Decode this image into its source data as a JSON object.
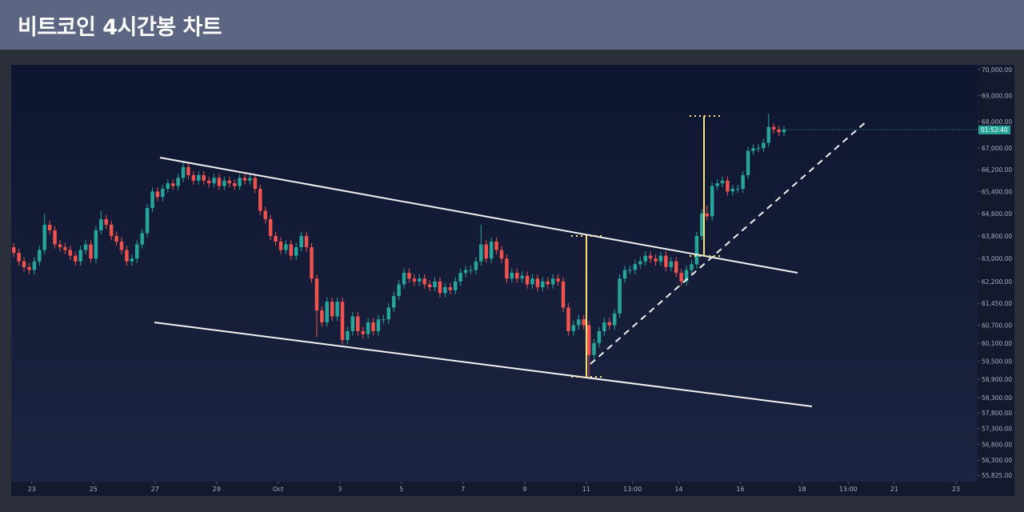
{
  "chart_data": {
    "type": "candlestick",
    "title": "비트코인 4시간봉 차트",
    "log_scale": true,
    "up_color": "#26a69a",
    "down_color": "#ef5350",
    "countdown": "01:52:40",
    "xlim": [
      -0.5,
      187.7
    ],
    "ylim": [
      55630,
      70190
    ],
    "yticks": [
      {
        "value": 70000,
        "label": "70,000.00"
      },
      {
        "value": 69000,
        "label": "69,000.00"
      },
      {
        "value": 68000,
        "label": "68,000.00"
      },
      {
        "value": 67000,
        "label": "67,000.00"
      },
      {
        "value": 66200,
        "label": "66,200.00"
      },
      {
        "value": 65400,
        "label": "65,400.00"
      },
      {
        "value": 64600,
        "label": "64,600.00"
      },
      {
        "value": 63800,
        "label": "63,800.00"
      },
      {
        "value": 63000,
        "label": "63,000.00"
      },
      {
        "value": 62200,
        "label": "62,200.00"
      },
      {
        "value": 61450,
        "label": "61,450.00"
      },
      {
        "value": 60700,
        "label": "60,700.00"
      },
      {
        "value": 60100,
        "label": "60,100.00"
      },
      {
        "value": 59500,
        "label": "59,500.00"
      },
      {
        "value": 58900,
        "label": "58,900.00"
      },
      {
        "value": 58300,
        "label": "58,300.00"
      },
      {
        "value": 57800,
        "label": "57,800.00"
      },
      {
        "value": 57300,
        "label": "57,300.00"
      },
      {
        "value": 56800,
        "label": "56,800.00"
      },
      {
        "value": 56300,
        "label": "56,300.00"
      },
      {
        "value": 55825,
        "label": "55,825.00"
      }
    ],
    "xticks": [
      {
        "value": 3.5,
        "label": "23"
      },
      {
        "value": 15.5,
        "label": "25"
      },
      {
        "value": 27.5,
        "label": "27"
      },
      {
        "value": 39.5,
        "label": "29"
      },
      {
        "value": 51.5,
        "label": "Oct"
      },
      {
        "value": 63.5,
        "label": "3"
      },
      {
        "value": 75.5,
        "label": "5"
      },
      {
        "value": 87.5,
        "label": "7"
      },
      {
        "value": 99.5,
        "label": "9"
      },
      {
        "value": 111.5,
        "label": "11"
      },
      {
        "value": 120.5,
        "label": "13:00"
      },
      {
        "value": 129.5,
        "label": "14"
      },
      {
        "value": 141.5,
        "label": "16"
      },
      {
        "value": 153.5,
        "label": "18"
      },
      {
        "value": 162.5,
        "label": "13:00"
      },
      {
        "value": 171.5,
        "label": "21"
      },
      {
        "value": 183.5,
        "label": "23"
      }
    ],
    "ohlc": [
      [
        63400,
        63550,
        63050,
        63200
      ],
      [
        63200,
        63350,
        62750,
        62900
      ],
      [
        62900,
        63050,
        62550,
        62700
      ],
      [
        62700,
        62850,
        62450,
        62600
      ],
      [
        62600,
        63050,
        62450,
        62900
      ],
      [
        62900,
        63450,
        62750,
        63300
      ],
      [
        63300,
        64600,
        63150,
        64200
      ],
      [
        64200,
        64350,
        63850,
        64000
      ],
      [
        64000,
        64150,
        63350,
        63500
      ],
      [
        63500,
        63650,
        63250,
        63400
      ],
      [
        63400,
        63550,
        63150,
        63300
      ],
      [
        63300,
        63450,
        62950,
        63100
      ],
      [
        63100,
        63250,
        62750,
        62900
      ],
      [
        62900,
        63450,
        62750,
        63300
      ],
      [
        63300,
        63650,
        63150,
        63500
      ],
      [
        63500,
        63650,
        62850,
        63000
      ],
      [
        63000,
        64150,
        62850,
        64000
      ],
      [
        64000,
        64700,
        63850,
        64400
      ],
      [
        64400,
        64550,
        64050,
        64200
      ],
      [
        64200,
        64350,
        63650,
        63800
      ],
      [
        63800,
        63950,
        63450,
        63600
      ],
      [
        63600,
        63750,
        63150,
        63300
      ],
      [
        63300,
        63450,
        62750,
        62900
      ],
      [
        62900,
        63150,
        62750,
        63000
      ],
      [
        63000,
        63650,
        62850,
        63500
      ],
      [
        63500,
        64050,
        63350,
        63900
      ],
      [
        63900,
        64950,
        63750,
        64800
      ],
      [
        64800,
        65550,
        64650,
        65400
      ],
      [
        65400,
        65550,
        65050,
        65200
      ],
      [
        65200,
        65650,
        65050,
        65500
      ],
      [
        65500,
        65850,
        65350,
        65700
      ],
      [
        65700,
        65850,
        65450,
        65600
      ],
      [
        65600,
        66050,
        65450,
        65900
      ],
      [
        65900,
        66500,
        65750,
        66300
      ],
      [
        66300,
        66450,
        65850,
        66000
      ],
      [
        66000,
        66150,
        65650,
        65800
      ],
      [
        65800,
        66150,
        65650,
        66000
      ],
      [
        66000,
        66150,
        65650,
        65800
      ],
      [
        65800,
        65950,
        65550,
        65700
      ],
      [
        65700,
        66050,
        65550,
        65900
      ],
      [
        65900,
        66050,
        65450,
        65600
      ],
      [
        65600,
        65950,
        65450,
        65800
      ],
      [
        65800,
        65950,
        65550,
        65700
      ],
      [
        65700,
        65850,
        65450,
        65600
      ],
      [
        65600,
        66050,
        65450,
        65900
      ],
      [
        65900,
        66050,
        65650,
        65800
      ],
      [
        65800,
        66050,
        65650,
        65900
      ],
      [
        65900,
        66050,
        65350,
        65500
      ],
      [
        65500,
        65650,
        64550,
        64700
      ],
      [
        64700,
        64850,
        64250,
        64400
      ],
      [
        64400,
        64550,
        63650,
        63800
      ],
      [
        63800,
        63950,
        63450,
        63600
      ],
      [
        63600,
        63750,
        63150,
        63300
      ],
      [
        63300,
        63650,
        63150,
        63500
      ],
      [
        63500,
        63650,
        62950,
        63100
      ],
      [
        63100,
        63550,
        62950,
        63400
      ],
      [
        63400,
        63950,
        63250,
        63800
      ],
      [
        63800,
        63950,
        63250,
        63400
      ],
      [
        63400,
        63550,
        62150,
        62300
      ],
      [
        62300,
        62450,
        60300,
        61200
      ],
      [
        61200,
        61350,
        60650,
        60800
      ],
      [
        60800,
        61650,
        60650,
        61500
      ],
      [
        61500,
        61650,
        60850,
        61000
      ],
      [
        61000,
        61650,
        60850,
        61500
      ],
      [
        61500,
        61650,
        60050,
        60200
      ],
      [
        60200,
        60650,
        60050,
        60500
      ],
      [
        60500,
        61150,
        60350,
        61000
      ],
      [
        61000,
        61150,
        60350,
        60500
      ],
      [
        60500,
        60650,
        60250,
        60400
      ],
      [
        60400,
        60950,
        60250,
        60800
      ],
      [
        60800,
        60950,
        60350,
        60500
      ],
      [
        60500,
        61050,
        60350,
        60900
      ],
      [
        60900,
        61050,
        60750,
        60900
      ],
      [
        60900,
        61450,
        60750,
        61300
      ],
      [
        61300,
        61850,
        61150,
        61700
      ],
      [
        61700,
        62250,
        61550,
        62100
      ],
      [
        62100,
        62650,
        61950,
        62500
      ],
      [
        62500,
        62650,
        62150,
        62300
      ],
      [
        62300,
        62450,
        62050,
        62200
      ],
      [
        62200,
        62450,
        62050,
        62300
      ],
      [
        62300,
        62450,
        61950,
        62100
      ],
      [
        62100,
        62250,
        61850,
        62000
      ],
      [
        62000,
        62350,
        61850,
        62200
      ],
      [
        62200,
        62350,
        61650,
        61800
      ],
      [
        61800,
        62150,
        61650,
        62000
      ],
      [
        62000,
        62150,
        61750,
        61900
      ],
      [
        61900,
        62350,
        61750,
        62200
      ],
      [
        62200,
        62650,
        62050,
        62500
      ],
      [
        62500,
        62750,
        62350,
        62600
      ],
      [
        62600,
        62750,
        62450,
        62600
      ],
      [
        62600,
        63050,
        62450,
        62900
      ],
      [
        62900,
        64200,
        62750,
        63500
      ],
      [
        63500,
        63650,
        62850,
        63000
      ],
      [
        63000,
        63750,
        62850,
        63600
      ],
      [
        63600,
        63750,
        63150,
        63300
      ],
      [
        63300,
        63450,
        62850,
        63000
      ],
      [
        63000,
        63150,
        62150,
        62300
      ],
      [
        62300,
        62650,
        62150,
        62500
      ],
      [
        62500,
        62650,
        62150,
        62300
      ],
      [
        62300,
        62550,
        62150,
        62400
      ],
      [
        62400,
        62550,
        61950,
        62100
      ],
      [
        62100,
        62450,
        61950,
        62300
      ],
      [
        62300,
        62450,
        61850,
        62000
      ],
      [
        62000,
        62350,
        61850,
        62200
      ],
      [
        62200,
        62350,
        61950,
        62100
      ],
      [
        62100,
        62450,
        61950,
        62300
      ],
      [
        62300,
        62450,
        62050,
        62200
      ],
      [
        62200,
        62350,
        61150,
        61300
      ],
      [
        61300,
        61450,
        60350,
        60500
      ],
      [
        60500,
        60850,
        60350,
        60700
      ],
      [
        60700,
        61050,
        60550,
        60900
      ],
      [
        60900,
        61050,
        60550,
        60700
      ],
      [
        60700,
        60850,
        58950,
        59700
      ],
      [
        59700,
        60250,
        59550,
        60100
      ],
      [
        60100,
        60650,
        59950,
        60500
      ],
      [
        60500,
        60950,
        60350,
        60800
      ],
      [
        60800,
        60950,
        60550,
        60700
      ],
      [
        60700,
        61250,
        60550,
        61100
      ],
      [
        61100,
        62450,
        60950,
        62300
      ],
      [
        62300,
        62750,
        62150,
        62600
      ],
      [
        62600,
        62750,
        62450,
        62600
      ],
      [
        62600,
        62950,
        62450,
        62800
      ],
      [
        62800,
        63050,
        62650,
        62900
      ],
      [
        62900,
        63250,
        62750,
        63100
      ],
      [
        63100,
        63250,
        62850,
        63000
      ],
      [
        63000,
        63150,
        62750,
        62900
      ],
      [
        62900,
        63250,
        62750,
        63100
      ],
      [
        63100,
        63250,
        62550,
        62700
      ],
      [
        62700,
        63050,
        62550,
        62900
      ],
      [
        62900,
        63050,
        62350,
        62500
      ],
      [
        62500,
        62650,
        62050,
        62200
      ],
      [
        62200,
        62750,
        62050,
        62600
      ],
      [
        62600,
        62950,
        62450,
        62800
      ],
      [
        62800,
        63950,
        62650,
        63800
      ],
      [
        63800,
        64750,
        63650,
        64600
      ],
      [
        64600,
        64900,
        64350,
        64500
      ],
      [
        64500,
        65750,
        64350,
        65600
      ],
      [
        65600,
        65850,
        65450,
        65700
      ],
      [
        65700,
        65950,
        65550,
        65800
      ],
      [
        65800,
        65950,
        65250,
        65400
      ],
      [
        65400,
        65650,
        65250,
        65500
      ],
      [
        65500,
        65650,
        65350,
        65500
      ],
      [
        65500,
        66150,
        65350,
        66000
      ],
      [
        66000,
        67050,
        65850,
        66900
      ],
      [
        66900,
        67150,
        66750,
        67000
      ],
      [
        67000,
        67150,
        66850,
        67000
      ],
      [
        67000,
        67350,
        66850,
        67200
      ],
      [
        67200,
        68300,
        67050,
        67800
      ],
      [
        67800,
        67950,
        67550,
        67700
      ],
      [
        67700,
        67850,
        67450,
        67600
      ],
      [
        67600,
        67850,
        67450,
        67700
      ]
    ]
  }
}
